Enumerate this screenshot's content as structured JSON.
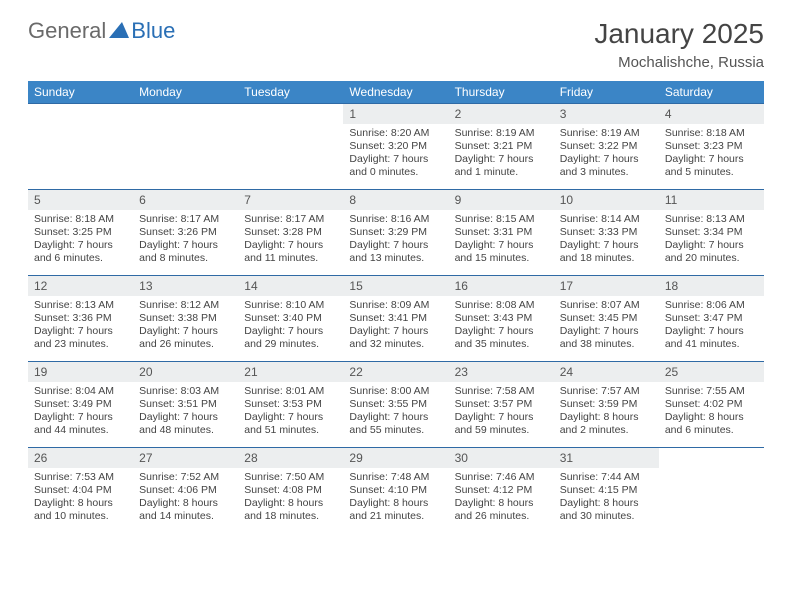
{
  "logo": {
    "part1": "General",
    "part2": "Blue"
  },
  "title": "January 2025",
  "location": "Mochalishche, Russia",
  "colors": {
    "header_bg": "#3b85c6",
    "header_text": "#ffffff",
    "row_border": "#2f6aa5",
    "daynum_bg": "#eceeef",
    "logo_gray": "#6a6a6a",
    "logo_blue": "#2a6fb5"
  },
  "weekdays": [
    "Sunday",
    "Monday",
    "Tuesday",
    "Wednesday",
    "Thursday",
    "Friday",
    "Saturday"
  ],
  "weeks": [
    [
      null,
      null,
      null,
      {
        "n": "1",
        "sr": "Sunrise: 8:20 AM",
        "ss": "Sunset: 3:20 PM",
        "d1": "Daylight: 7 hours",
        "d2": "and 0 minutes."
      },
      {
        "n": "2",
        "sr": "Sunrise: 8:19 AM",
        "ss": "Sunset: 3:21 PM",
        "d1": "Daylight: 7 hours",
        "d2": "and 1 minute."
      },
      {
        "n": "3",
        "sr": "Sunrise: 8:19 AM",
        "ss": "Sunset: 3:22 PM",
        "d1": "Daylight: 7 hours",
        "d2": "and 3 minutes."
      },
      {
        "n": "4",
        "sr": "Sunrise: 8:18 AM",
        "ss": "Sunset: 3:23 PM",
        "d1": "Daylight: 7 hours",
        "d2": "and 5 minutes."
      }
    ],
    [
      {
        "n": "5",
        "sr": "Sunrise: 8:18 AM",
        "ss": "Sunset: 3:25 PM",
        "d1": "Daylight: 7 hours",
        "d2": "and 6 minutes."
      },
      {
        "n": "6",
        "sr": "Sunrise: 8:17 AM",
        "ss": "Sunset: 3:26 PM",
        "d1": "Daylight: 7 hours",
        "d2": "and 8 minutes."
      },
      {
        "n": "7",
        "sr": "Sunrise: 8:17 AM",
        "ss": "Sunset: 3:28 PM",
        "d1": "Daylight: 7 hours",
        "d2": "and 11 minutes."
      },
      {
        "n": "8",
        "sr": "Sunrise: 8:16 AM",
        "ss": "Sunset: 3:29 PM",
        "d1": "Daylight: 7 hours",
        "d2": "and 13 minutes."
      },
      {
        "n": "9",
        "sr": "Sunrise: 8:15 AM",
        "ss": "Sunset: 3:31 PM",
        "d1": "Daylight: 7 hours",
        "d2": "and 15 minutes."
      },
      {
        "n": "10",
        "sr": "Sunrise: 8:14 AM",
        "ss": "Sunset: 3:33 PM",
        "d1": "Daylight: 7 hours",
        "d2": "and 18 minutes."
      },
      {
        "n": "11",
        "sr": "Sunrise: 8:13 AM",
        "ss": "Sunset: 3:34 PM",
        "d1": "Daylight: 7 hours",
        "d2": "and 20 minutes."
      }
    ],
    [
      {
        "n": "12",
        "sr": "Sunrise: 8:13 AM",
        "ss": "Sunset: 3:36 PM",
        "d1": "Daylight: 7 hours",
        "d2": "and 23 minutes."
      },
      {
        "n": "13",
        "sr": "Sunrise: 8:12 AM",
        "ss": "Sunset: 3:38 PM",
        "d1": "Daylight: 7 hours",
        "d2": "and 26 minutes."
      },
      {
        "n": "14",
        "sr": "Sunrise: 8:10 AM",
        "ss": "Sunset: 3:40 PM",
        "d1": "Daylight: 7 hours",
        "d2": "and 29 minutes."
      },
      {
        "n": "15",
        "sr": "Sunrise: 8:09 AM",
        "ss": "Sunset: 3:41 PM",
        "d1": "Daylight: 7 hours",
        "d2": "and 32 minutes."
      },
      {
        "n": "16",
        "sr": "Sunrise: 8:08 AM",
        "ss": "Sunset: 3:43 PM",
        "d1": "Daylight: 7 hours",
        "d2": "and 35 minutes."
      },
      {
        "n": "17",
        "sr": "Sunrise: 8:07 AM",
        "ss": "Sunset: 3:45 PM",
        "d1": "Daylight: 7 hours",
        "d2": "and 38 minutes."
      },
      {
        "n": "18",
        "sr": "Sunrise: 8:06 AM",
        "ss": "Sunset: 3:47 PM",
        "d1": "Daylight: 7 hours",
        "d2": "and 41 minutes."
      }
    ],
    [
      {
        "n": "19",
        "sr": "Sunrise: 8:04 AM",
        "ss": "Sunset: 3:49 PM",
        "d1": "Daylight: 7 hours",
        "d2": "and 44 minutes."
      },
      {
        "n": "20",
        "sr": "Sunrise: 8:03 AM",
        "ss": "Sunset: 3:51 PM",
        "d1": "Daylight: 7 hours",
        "d2": "and 48 minutes."
      },
      {
        "n": "21",
        "sr": "Sunrise: 8:01 AM",
        "ss": "Sunset: 3:53 PM",
        "d1": "Daylight: 7 hours",
        "d2": "and 51 minutes."
      },
      {
        "n": "22",
        "sr": "Sunrise: 8:00 AM",
        "ss": "Sunset: 3:55 PM",
        "d1": "Daylight: 7 hours",
        "d2": "and 55 minutes."
      },
      {
        "n": "23",
        "sr": "Sunrise: 7:58 AM",
        "ss": "Sunset: 3:57 PM",
        "d1": "Daylight: 7 hours",
        "d2": "and 59 minutes."
      },
      {
        "n": "24",
        "sr": "Sunrise: 7:57 AM",
        "ss": "Sunset: 3:59 PM",
        "d1": "Daylight: 8 hours",
        "d2": "and 2 minutes."
      },
      {
        "n": "25",
        "sr": "Sunrise: 7:55 AM",
        "ss": "Sunset: 4:02 PM",
        "d1": "Daylight: 8 hours",
        "d2": "and 6 minutes."
      }
    ],
    [
      {
        "n": "26",
        "sr": "Sunrise: 7:53 AM",
        "ss": "Sunset: 4:04 PM",
        "d1": "Daylight: 8 hours",
        "d2": "and 10 minutes."
      },
      {
        "n": "27",
        "sr": "Sunrise: 7:52 AM",
        "ss": "Sunset: 4:06 PM",
        "d1": "Daylight: 8 hours",
        "d2": "and 14 minutes."
      },
      {
        "n": "28",
        "sr": "Sunrise: 7:50 AM",
        "ss": "Sunset: 4:08 PM",
        "d1": "Daylight: 8 hours",
        "d2": "and 18 minutes."
      },
      {
        "n": "29",
        "sr": "Sunrise: 7:48 AM",
        "ss": "Sunset: 4:10 PM",
        "d1": "Daylight: 8 hours",
        "d2": "and 21 minutes."
      },
      {
        "n": "30",
        "sr": "Sunrise: 7:46 AM",
        "ss": "Sunset: 4:12 PM",
        "d1": "Daylight: 8 hours",
        "d2": "and 26 minutes."
      },
      {
        "n": "31",
        "sr": "Sunrise: 7:44 AM",
        "ss": "Sunset: 4:15 PM",
        "d1": "Daylight: 8 hours",
        "d2": "and 30 minutes."
      },
      null
    ]
  ]
}
